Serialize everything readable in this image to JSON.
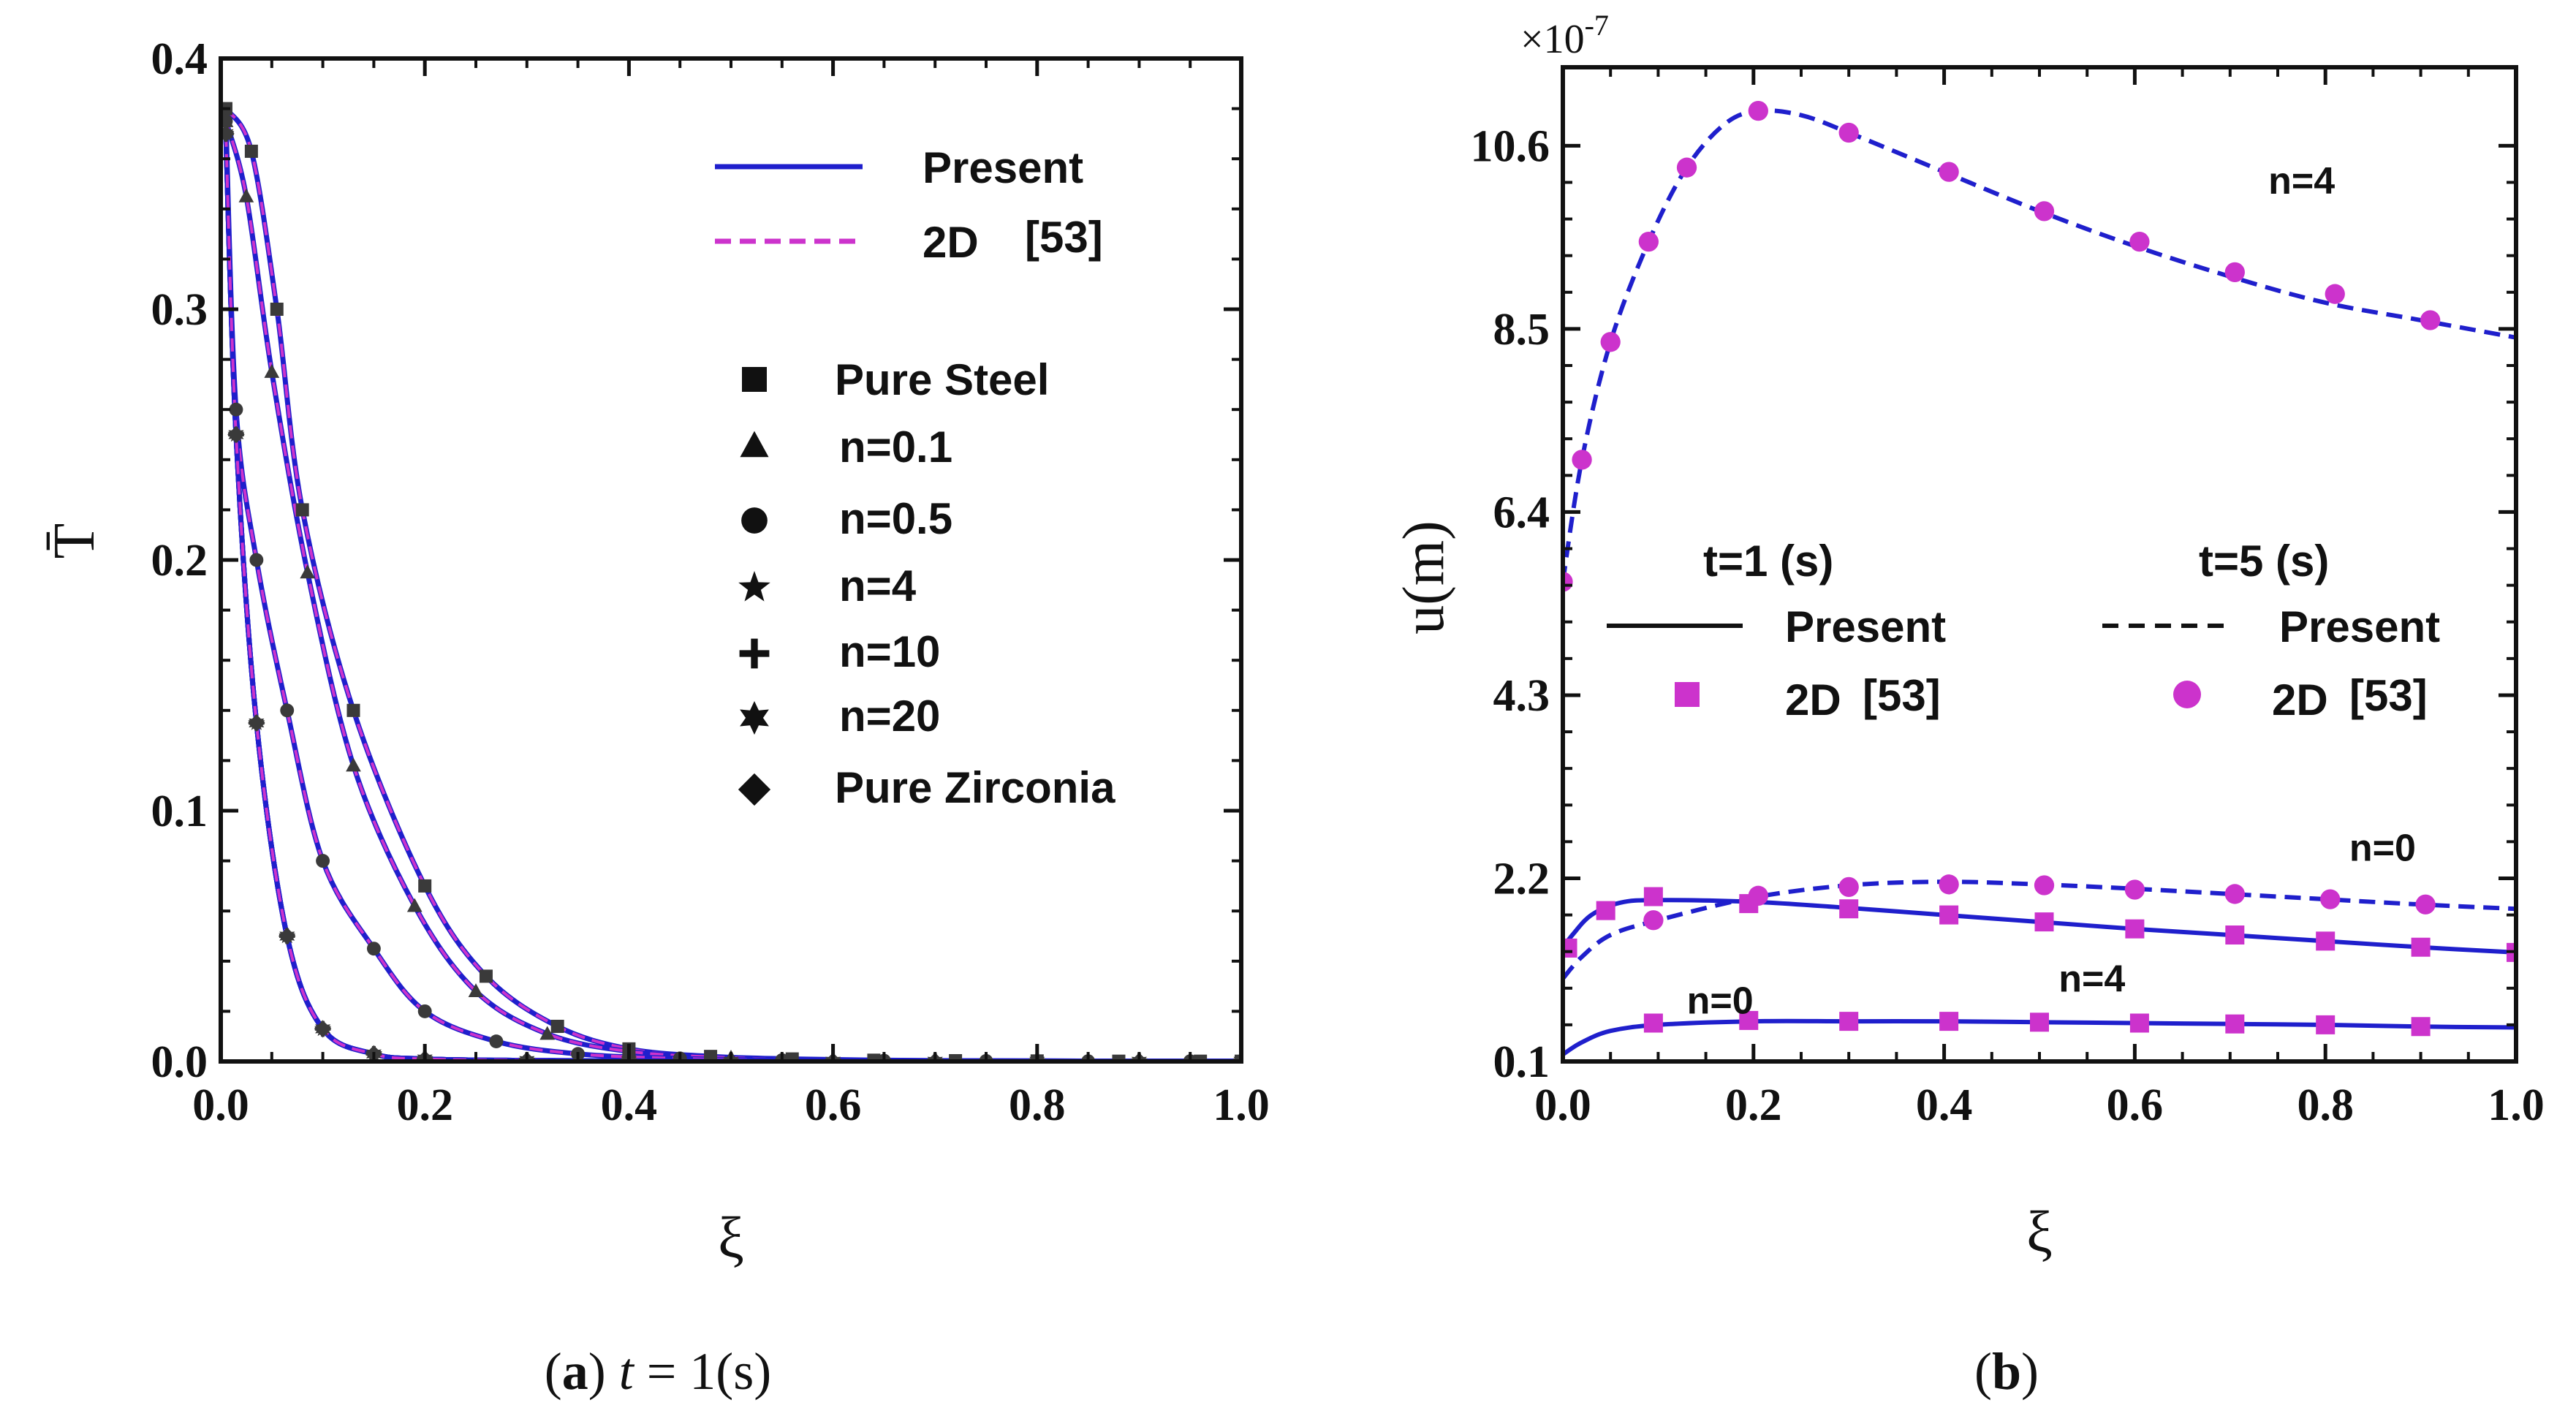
{
  "chart_data": [
    {
      "type": "line",
      "panel": "a",
      "title": "",
      "xlabel": "ξ",
      "ylabel": "T̄",
      "xlim": [
        0,
        1
      ],
      "ylim": [
        0,
        0.4
      ],
      "xticks": [
        0.0,
        0.2,
        0.4,
        0.6,
        0.8,
        1.0
      ],
      "xtick_labels": [
        "0.0",
        "0.2",
        "0.4",
        "0.6",
        "0.8",
        "1.0"
      ],
      "yticks": [
        0.0,
        0.1,
        0.2,
        0.3,
        0.4
      ],
      "ytick_labels": [
        "0.0",
        "0.1",
        "0.2",
        "0.3",
        "0.4"
      ],
      "legend_lines": [
        {
          "label": "Present",
          "style": "solid",
          "color": "#1f1fcc"
        },
        {
          "label": "2D",
          "ref": "[53]",
          "style": "dashed",
          "color": "#cc33cc"
        }
      ],
      "legend_markers": [
        {
          "label": "Pure Steel",
          "marker": "square"
        },
        {
          "label": "n=0.1",
          "marker": "triangle"
        },
        {
          "label": "n=0.5",
          "marker": "circle"
        },
        {
          "label": "n=4",
          "marker": "star5"
        },
        {
          "label": "n=10",
          "marker": "plus"
        },
        {
          "label": "n=20",
          "marker": "star6"
        },
        {
          "label": "Pure Zirconia",
          "marker": "diamond"
        }
      ],
      "series": [
        {
          "name": "Pure Steel",
          "marker": "square",
          "x": [
            0.005,
            0.03,
            0.055,
            0.08,
            0.13,
            0.2,
            0.26,
            0.33,
            0.4,
            0.48,
            0.56,
            0.64,
            0.72,
            0.8,
            0.88,
            0.96,
            1.0
          ],
          "y": [
            0.38,
            0.363,
            0.3,
            0.22,
            0.14,
            0.07,
            0.034,
            0.014,
            0.005,
            0.002,
            0.001,
            0.0005,
            0.0003,
            0.0002,
            0.0001,
            0.0001,
            0.0001
          ]
        },
        {
          "name": "n=0.1",
          "marker": "triangle",
          "x": [
            0.005,
            0.025,
            0.05,
            0.085,
            0.13,
            0.19,
            0.25,
            0.32,
            0.4,
            0.5,
            0.6,
            0.7,
            0.8,
            0.9,
            1.0
          ],
          "y": [
            0.375,
            0.345,
            0.275,
            0.195,
            0.118,
            0.062,
            0.028,
            0.011,
            0.004,
            0.0015,
            0.0006,
            0.0003,
            0.0002,
            0.0001,
            0.0001
          ]
        },
        {
          "name": "n=0.5",
          "marker": "circle",
          "x": [
            0.005,
            0.015,
            0.035,
            0.065,
            0.1,
            0.15,
            0.2,
            0.27,
            0.35,
            0.45,
            0.55,
            0.65,
            0.75,
            0.85,
            0.95,
            1.0
          ],
          "y": [
            0.375,
            0.26,
            0.2,
            0.14,
            0.08,
            0.045,
            0.02,
            0.008,
            0.003,
            0.0012,
            0.0005,
            0.0003,
            0.0002,
            0.0001,
            0.0001,
            0.0001
          ]
        },
        {
          "name": "n=4",
          "marker": "star5",
          "x": [
            0.005,
            0.015,
            0.035,
            0.065,
            0.1,
            0.15,
            0.2,
            0.3,
            0.4,
            0.5,
            0.6,
            0.7,
            0.8,
            0.9,
            1.0
          ],
          "y": [
            0.37,
            0.25,
            0.135,
            0.05,
            0.013,
            0.003,
            0.001,
            0.0004,
            0.0002,
            0.0001,
            0.0001,
            0.0001,
            0.0001,
            0.0001,
            0.0001
          ]
        },
        {
          "name": "n=10",
          "marker": "plus",
          "x": [
            0.005,
            0.015,
            0.035,
            0.065,
            0.1,
            0.15,
            0.2,
            0.3,
            0.4,
            0.5,
            0.6,
            0.7,
            0.8,
            0.9,
            1.0
          ],
          "y": [
            0.37,
            0.25,
            0.135,
            0.05,
            0.013,
            0.003,
            0.001,
            0.0004,
            0.0002,
            0.0001,
            0.0001,
            0.0001,
            0.0001,
            0.0001,
            0.0001
          ]
        },
        {
          "name": "n=20",
          "marker": "star6",
          "x": [
            0.005,
            0.015,
            0.035,
            0.065,
            0.1,
            0.15,
            0.2,
            0.3,
            0.4,
            0.5,
            0.6,
            0.7,
            0.8,
            0.9,
            1.0
          ],
          "y": [
            0.37,
            0.25,
            0.135,
            0.05,
            0.013,
            0.003,
            0.001,
            0.0004,
            0.0002,
            0.0001,
            0.0001,
            0.0001,
            0.0001,
            0.0001,
            0.0001
          ]
        },
        {
          "name": "Pure Zirconia",
          "marker": "diamond",
          "x": [
            0.005,
            0.015,
            0.035,
            0.065,
            0.1,
            0.15,
            0.2,
            0.3,
            0.4,
            0.5,
            0.6,
            0.7,
            0.8,
            0.9,
            1.0
          ],
          "y": [
            0.37,
            0.25,
            0.135,
            0.05,
            0.013,
            0.003,
            0.001,
            0.0004,
            0.0002,
            0.0001,
            0.0001,
            0.0001,
            0.0001,
            0.0001,
            0.0001
          ]
        }
      ],
      "caption": {
        "label": "a",
        "t_symbol": "t",
        "eq": " = 1(s)"
      }
    },
    {
      "type": "line",
      "panel": "b",
      "title": "",
      "xlabel": "ξ",
      "ylabel": "u(m)",
      "y_multiplier": {
        "base": "×10",
        "exp": "-7"
      },
      "xlim": [
        0,
        1
      ],
      "ylim": [
        0.1,
        11.5
      ],
      "xticks": [
        0.0,
        0.2,
        0.4,
        0.6,
        0.8,
        1.0
      ],
      "xtick_labels": [
        "0.0",
        "0.2",
        "0.4",
        "0.6",
        "0.8",
        "1.0"
      ],
      "yticks": [
        0.1,
        2.2,
        4.3,
        6.4,
        8.5,
        10.6
      ],
      "ytick_labels": [
        "0.1",
        "2.2",
        "4.3",
        "6.4",
        "8.5",
        "10.6"
      ],
      "legend": {
        "t1_header": "t=1 (s)",
        "t5_header": "t=5 (s)",
        "present_label": "Present",
        "ref_label": "2D",
        "ref_num": "[53]"
      },
      "annotations": [
        {
          "text": "n=4",
          "x": 0.775,
          "y": 10.05
        },
        {
          "text": "n=0",
          "x": 0.86,
          "y": 2.4
        },
        {
          "text": "n=4",
          "x": 0.555,
          "y": 0.9
        },
        {
          "text": "n=0",
          "x": 0.165,
          "y": 0.65
        }
      ],
      "series": [
        {
          "name": "t=1 (s) n=0 Present",
          "style": "solid",
          "x": [
            0.0,
            0.02,
            0.05,
            0.1,
            0.2,
            0.3,
            0.4,
            0.5,
            0.6,
            0.7,
            0.8,
            0.9,
            1.0
          ],
          "y": [
            0.18,
            0.32,
            0.45,
            0.52,
            0.56,
            0.56,
            0.56,
            0.55,
            0.54,
            0.53,
            0.52,
            0.5,
            0.49
          ]
        },
        {
          "name": "t=1 (s) n=0 2D [53]",
          "marker": "square",
          "x": [
            0.095,
            0.195,
            0.3,
            0.405,
            0.5,
            0.605,
            0.705,
            0.8,
            0.9
          ],
          "y": [
            0.54,
            0.57,
            0.56,
            0.56,
            0.55,
            0.54,
            0.53,
            0.52,
            0.5
          ]
        },
        {
          "name": "t=1 (s) n=4 Present",
          "style": "solid",
          "x": [
            0.0,
            0.01,
            0.03,
            0.06,
            0.1,
            0.2,
            0.3,
            0.4,
            0.5,
            0.6,
            0.7,
            0.8,
            0.9,
            1.0
          ],
          "y": [
            1.4,
            1.55,
            1.78,
            1.92,
            1.95,
            1.93,
            1.86,
            1.78,
            1.7,
            1.62,
            1.55,
            1.48,
            1.41,
            1.35
          ]
        },
        {
          "name": "t=1 (s) n=4 2D [53]",
          "marker": "square",
          "x": [
            0.005,
            0.045,
            0.095,
            0.195,
            0.3,
            0.405,
            0.505,
            0.6,
            0.705,
            0.8,
            0.9,
            1.0
          ],
          "y": [
            1.4,
            1.83,
            1.99,
            1.91,
            1.85,
            1.78,
            1.7,
            1.62,
            1.55,
            1.48,
            1.41,
            1.35
          ]
        },
        {
          "name": "t=5 (s) n=0 Present",
          "style": "dashed",
          "x": [
            0.0,
            0.02,
            0.05,
            0.1,
            0.2,
            0.3,
            0.4,
            0.5,
            0.6,
            0.7,
            0.8,
            0.9,
            1.0
          ],
          "y": [
            1.05,
            1.3,
            1.55,
            1.72,
            1.98,
            2.12,
            2.16,
            2.13,
            2.08,
            2.02,
            1.96,
            1.9,
            1.85
          ]
        },
        {
          "name": "t=5 (s) n=0 2D [53]",
          "marker": "circle",
          "x": [
            0.095,
            0.205,
            0.3,
            0.405,
            0.505,
            0.6,
            0.705,
            0.805,
            0.905
          ],
          "y": [
            1.72,
            2.0,
            2.1,
            2.13,
            2.12,
            2.07,
            2.02,
            1.96,
            1.9
          ]
        },
        {
          "name": "t=5 (s) n=4 Present",
          "style": "dashed",
          "x": [
            0.0,
            0.02,
            0.05,
            0.09,
            0.13,
            0.17,
            0.205,
            0.25,
            0.3,
            0.4,
            0.5,
            0.6,
            0.7,
            0.8,
            0.9,
            1.0
          ],
          "y": [
            5.6,
            7.0,
            8.35,
            9.5,
            10.35,
            10.85,
            11.0,
            10.95,
            10.75,
            10.3,
            9.85,
            9.45,
            9.1,
            8.8,
            8.6,
            8.4
          ]
        },
        {
          "name": "t=5 (s) n=4 2D [53]",
          "marker": "circle",
          "x": [
            0.0,
            0.02,
            0.05,
            0.09,
            0.13,
            0.205,
            0.3,
            0.405,
            0.505,
            0.605,
            0.705,
            0.81,
            0.91
          ],
          "y": [
            5.6,
            7.0,
            8.35,
            9.5,
            10.35,
            11.0,
            10.75,
            10.3,
            9.85,
            9.5,
            9.15,
            8.9,
            8.6
          ]
        }
      ],
      "caption": {
        "label": "b"
      }
    }
  ]
}
